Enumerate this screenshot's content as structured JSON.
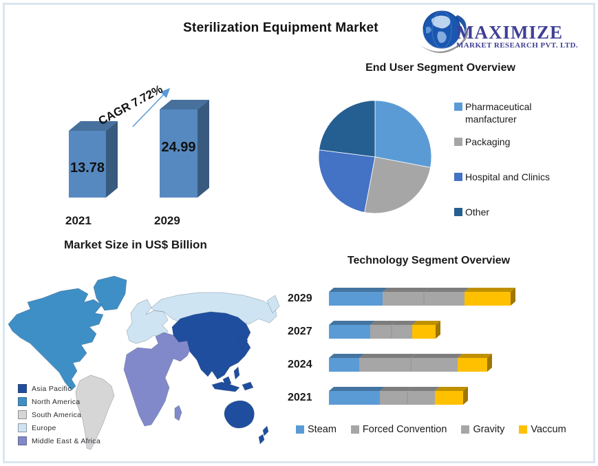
{
  "page": {
    "title": "Sterilization Equipment Market",
    "frame_color": "#D9E6F2"
  },
  "logo": {
    "line1": "MAXIMIZE",
    "line2": "MARKET RESEARCH PVT. LTD.",
    "text_color": "#3F3F96",
    "globe_icon_color": "#1A57B0"
  },
  "chart_data": [
    {
      "id": "market_size",
      "type": "bar",
      "title": "Market Size in US$ Billion",
      "categories": [
        "2021",
        "2029"
      ],
      "values": [
        13.78,
        24.99
      ],
      "value_labels": [
        "13.78",
        "24.99"
      ],
      "annotation": "CAGR 7.72%",
      "bar_color": "#5689C0",
      "arrow_color": "#5B9BD5",
      "ylim": [
        0,
        30
      ],
      "grid": false
    },
    {
      "id": "end_user",
      "type": "pie",
      "title": "End User Segment Overview",
      "labels": [
        "Pharmaceutical manfacturer",
        "Packaging",
        "Hospital and Clinics",
        "Other"
      ],
      "values": [
        28,
        25,
        24,
        23
      ],
      "colors": [
        "#5B9BD5",
        "#A6A6A6",
        "#4472C4",
        "#255E91"
      ],
      "legend_position": "right"
    },
    {
      "id": "technology",
      "type": "bar",
      "orientation": "horizontal-stacked",
      "title": "Technology Segment Overview",
      "categories": [
        "2029",
        "2027",
        "2024",
        "2021"
      ],
      "series": [
        {
          "name": "Steam",
          "color": "#5B9BD5",
          "values": [
            78,
            60,
            44,
            74
          ]
        },
        {
          "name": "Forced Convention",
          "color": "#A6A6A6",
          "values": [
            60,
            31,
            75,
            40
          ]
        },
        {
          "name": "Gravity",
          "color": "#A6A6A6",
          "values": [
            59,
            30,
            68,
            40
          ]
        },
        {
          "name": "Vaccum",
          "color": "#FFC000",
          "values": [
            67,
            34,
            43,
            41
          ]
        }
      ],
      "legend_position": "bottom",
      "grid": false
    }
  ],
  "map": {
    "legend": [
      {
        "label": "Asia Pacific",
        "color": "#1F4E9E"
      },
      {
        "label": "North America",
        "color": "#3E8FC6"
      },
      {
        "label": "South America",
        "color": "#D6D6D6"
      },
      {
        "label": "Europe",
        "color": "#CFE4F2"
      },
      {
        "label": "Middle East & Africa",
        "color": "#8289CB"
      }
    ]
  }
}
